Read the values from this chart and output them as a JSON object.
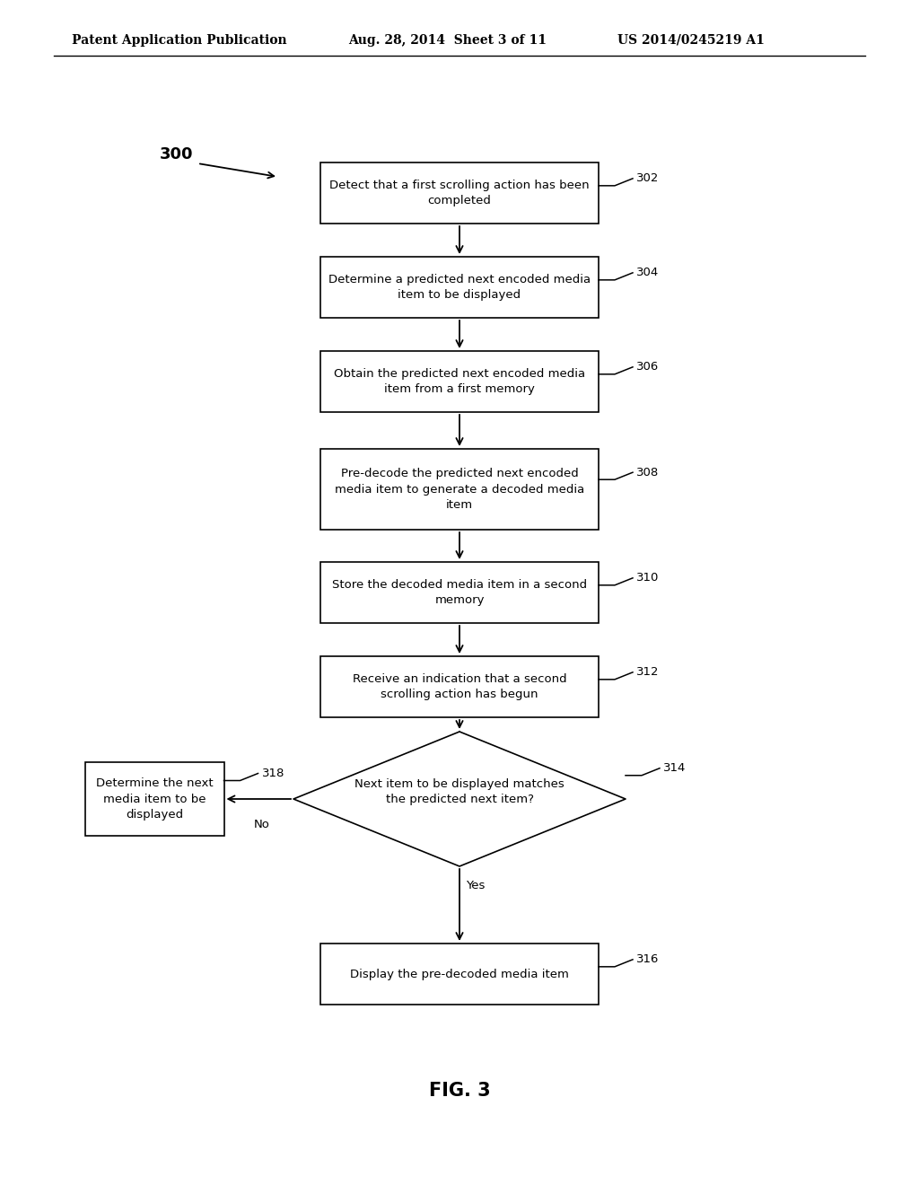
{
  "header_left": "Patent Application Publication",
  "header_mid": "Aug. 28, 2014  Sheet 3 of 11",
  "header_right": "US 2014/0245219 A1",
  "fig_label": "FIG. 3",
  "diagram_label": "300",
  "boxes": [
    {
      "label": "Detect that a first scrolling action has been\ncompleted",
      "ref": "302"
    },
    {
      "label": "Determine a predicted next encoded media\nitem to be displayed",
      "ref": "304"
    },
    {
      "label": "Obtain the predicted next encoded media\nitem from a first memory",
      "ref": "306"
    },
    {
      "label": "Pre-decode the predicted next encoded\nmedia item to generate a decoded media\nitem",
      "ref": "308"
    },
    {
      "label": "Store the decoded media item in a second\nmemory",
      "ref": "310"
    },
    {
      "label": "Receive an indication that a second\nscrolling action has begun",
      "ref": "312"
    }
  ],
  "diamond": {
    "label": "Next item to be displayed matches\nthe predicted next item?",
    "ref": "314",
    "yes_label": "Yes",
    "no_label": "No"
  },
  "end_box": {
    "label": "Display the pre-decoded media item",
    "ref": "316"
  },
  "side_box": {
    "label": "Determine the next\nmedia item to be\ndisplayed",
    "ref": "318"
  },
  "background_color": "#ffffff",
  "text_color": "#000000",
  "line_color": "#000000"
}
